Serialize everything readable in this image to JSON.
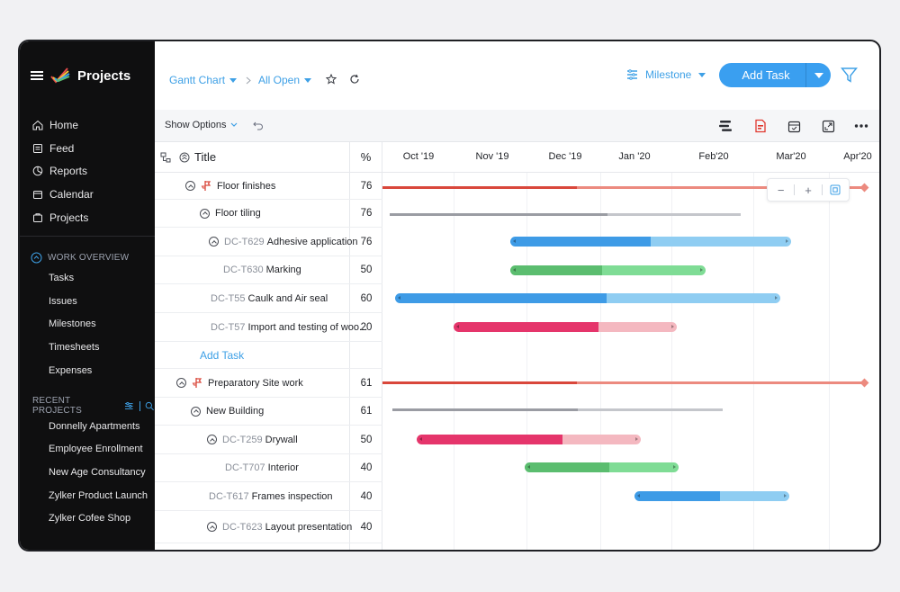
{
  "app": {
    "title": "Projects"
  },
  "sidebar": {
    "nav": [
      {
        "label": "Home",
        "icon": "home-icon"
      },
      {
        "label": "Feed",
        "icon": "feed-icon"
      },
      {
        "label": "Reports",
        "icon": "reports-icon"
      },
      {
        "label": "Calendar",
        "icon": "calendar-icon"
      },
      {
        "label": "Projects",
        "icon": "projects-icon"
      }
    ],
    "work_overview": {
      "title": "WORK OVERVIEW",
      "items": [
        "Tasks",
        "Issues",
        "Milestones",
        "Timesheets",
        "Expenses"
      ]
    },
    "recent_projects": {
      "title": "RECENT PROJECTS",
      "items": [
        "Donnelly Apartments",
        "Employee Enrollment",
        "New Age Consultancy",
        "Zylker Product Launch",
        "Zylker Cofee Shop"
      ]
    }
  },
  "header": {
    "view": "Gantt Chart",
    "filter": "All Open",
    "milestone": "Milestone",
    "add_task": "Add Task"
  },
  "toolbar": {
    "show_options": "Show Options"
  },
  "table": {
    "title_header": "Title",
    "pct_header": "%",
    "add_task": "Add Task",
    "rows": [
      {
        "id": "",
        "name": "Floor finishes",
        "pct": "76"
      },
      {
        "id": "",
        "name": "Floor tiling",
        "pct": "76"
      },
      {
        "id": "DC-T629",
        "name": "Adhesive application",
        "pct": "76"
      },
      {
        "id": "DC-T630",
        "name": "Marking",
        "pct": "50"
      },
      {
        "id": "DC-T55",
        "name": "Caulk and Air seal",
        "pct": "60"
      },
      {
        "id": "DC-T57",
        "name": "Import and testing of woo...",
        "pct": "20"
      },
      {
        "id": "",
        "name": "Preparatory Site work",
        "pct": "61"
      },
      {
        "id": "",
        "name": "New Building",
        "pct": "61"
      },
      {
        "id": "DC-T259",
        "name": "Drywall",
        "pct": "50"
      },
      {
        "id": "DC-T707",
        "name": "Interior",
        "pct": "40"
      },
      {
        "id": "DC-T617",
        "name": "Frames inspection",
        "pct": "40"
      },
      {
        "id": "DC-T623",
        "name": "Layout presentation",
        "pct": "40"
      }
    ]
  },
  "timeline": {
    "months": [
      "Oct '19",
      "Nov '19",
      "Dec '19",
      "Jan '20",
      "Feb'20",
      "Mar'20",
      "Apr'20"
    ]
  },
  "colors": {
    "accent": "#3a9ff0",
    "blue": "#3e9be6",
    "blue_light": "#8fcdf2",
    "green": "#5bbd6f",
    "green_light": "#7fdc95",
    "red": "#e5356b",
    "red_light": "#f4b8c0",
    "milestone": "#d9473b",
    "gray": "#9a9ca3"
  },
  "zoom": {
    "minus": "−",
    "plus": "+"
  }
}
